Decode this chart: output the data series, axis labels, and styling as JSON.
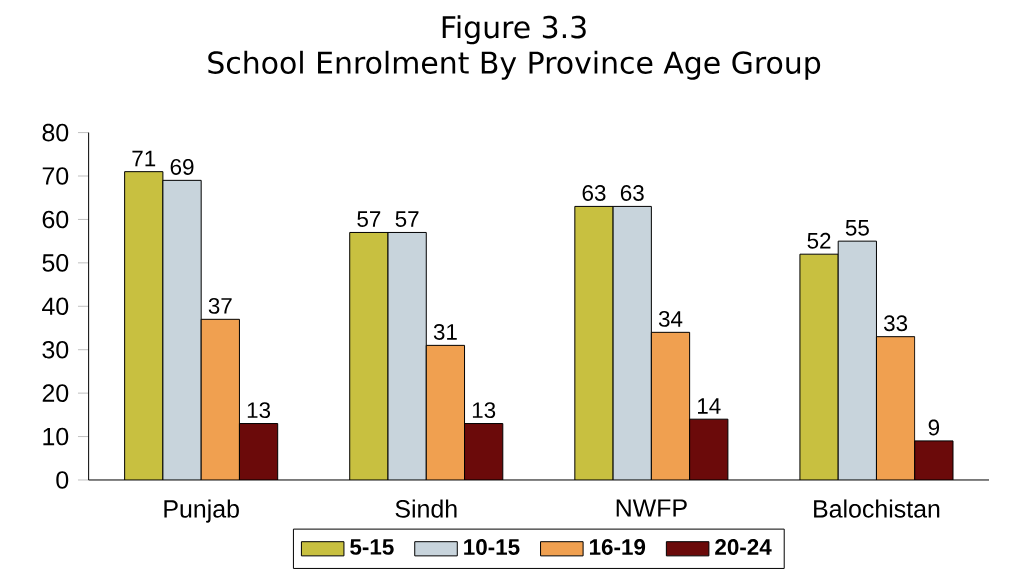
{
  "chart_data": {
    "type": "bar",
    "title": "Figure 3.3",
    "subtitle": "School Enrolment By Province Age Group",
    "categories": [
      "Punjab",
      "Sindh",
      "NWFP",
      "Balochistan"
    ],
    "series": [
      {
        "name": "5-15",
        "color": "#c8c040",
        "values": [
          71,
          57,
          63,
          52
        ]
      },
      {
        "name": "10-15",
        "color": "#c8d4dc",
        "values": [
          69,
          57,
          63,
          55
        ]
      },
      {
        "name": "16-19",
        "color": "#f0a050",
        "values": [
          37,
          31,
          34,
          33
        ]
      },
      {
        "name": "20-24",
        "color": "#6b0a0a",
        "values": [
          13,
          13,
          14,
          9
        ]
      }
    ],
    "ylim": [
      0,
      80
    ],
    "yticks": [
      0,
      10,
      20,
      30,
      40,
      50,
      60,
      70,
      80
    ],
    "data_labels": true,
    "legend": "bottom",
    "grid": false
  }
}
